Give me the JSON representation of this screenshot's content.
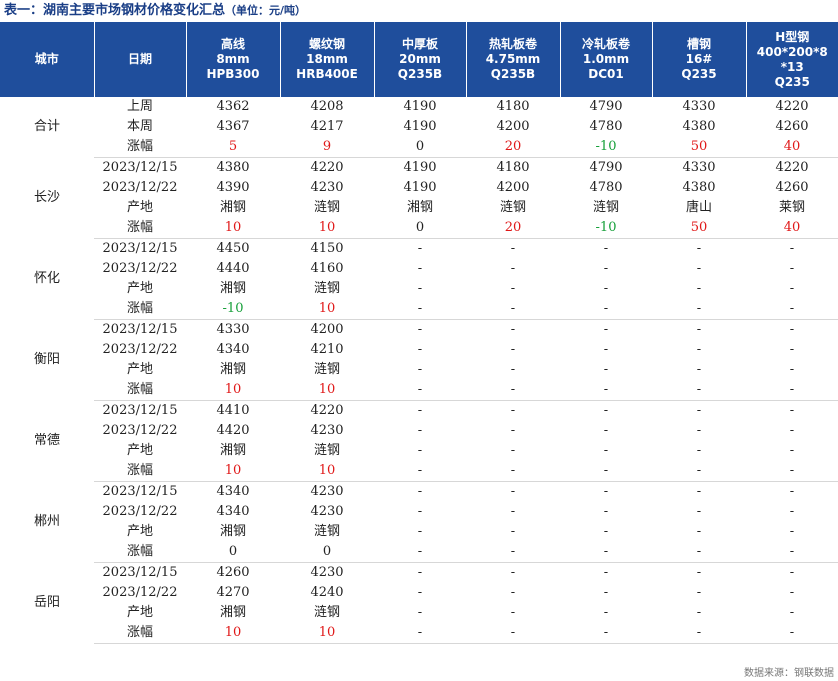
{
  "title": "表一：湖南主要市场钢材价格变化汇总",
  "unit_note": "（单位：元/吨）",
  "columns": [
    {
      "lines": [
        "城市"
      ]
    },
    {
      "lines": [
        "日期"
      ]
    },
    {
      "lines": [
        "高线",
        "8mm",
        "HPB300"
      ]
    },
    {
      "lines": [
        "螺纹钢",
        "18mm",
        "HRB400E"
      ]
    },
    {
      "lines": [
        "中厚板",
        "20mm",
        "Q235B"
      ]
    },
    {
      "lines": [
        "热轧板卷",
        "4.75mm",
        "Q235B"
      ]
    },
    {
      "lines": [
        "冷轧板卷",
        "1.0mm",
        "DC01"
      ]
    },
    {
      "lines": [
        "槽钢",
        "16#",
        "Q235"
      ]
    },
    {
      "lines": [
        "H型钢",
        "400*200*8",
        "*13",
        "Q235"
      ]
    }
  ],
  "groups": [
    {
      "city": "合计",
      "rows": [
        {
          "label": "上周",
          "cells": [
            "4362",
            "4208",
            "4190",
            "4180",
            "4790",
            "4330",
            "4220"
          ]
        },
        {
          "label": "本周",
          "cells": [
            "4367",
            "4217",
            "4190",
            "4200",
            "4780",
            "4380",
            "4260"
          ]
        },
        {
          "label": "涨幅",
          "change": true,
          "cells": [
            "5",
            "9",
            "0",
            "20",
            "-10",
            "50",
            "40"
          ]
        }
      ]
    },
    {
      "city": "长沙",
      "rows": [
        {
          "label": "2023/12/15",
          "cells": [
            "4380",
            "4220",
            "4190",
            "4180",
            "4790",
            "4330",
            "4220"
          ]
        },
        {
          "label": "2023/12/22",
          "cells": [
            "4390",
            "4230",
            "4190",
            "4200",
            "4780",
            "4380",
            "4260"
          ]
        },
        {
          "label": "产地",
          "cells": [
            "湘钢",
            "涟钢",
            "湘钢",
            "涟钢",
            "涟钢",
            "唐山",
            "莱钢"
          ]
        },
        {
          "label": "涨幅",
          "change": true,
          "cells": [
            "10",
            "10",
            "0",
            "20",
            "-10",
            "50",
            "40"
          ]
        }
      ]
    },
    {
      "city": "怀化",
      "rows": [
        {
          "label": "2023/12/15",
          "cells": [
            "4450",
            "4150",
            "-",
            "-",
            "-",
            "-",
            "-"
          ]
        },
        {
          "label": "2023/12/22",
          "cells": [
            "4440",
            "4160",
            "-",
            "-",
            "-",
            "-",
            "-"
          ]
        },
        {
          "label": "产地",
          "cells": [
            "湘钢",
            "涟钢",
            "-",
            "-",
            "-",
            "-",
            "-"
          ]
        },
        {
          "label": "涨幅",
          "change": true,
          "cells": [
            "-10",
            "10",
            "-",
            "-",
            "-",
            "-",
            "-"
          ]
        }
      ]
    },
    {
      "city": "衡阳",
      "rows": [
        {
          "label": "2023/12/15",
          "cells": [
            "4330",
            "4200",
            "-",
            "-",
            "-",
            "-",
            "-"
          ]
        },
        {
          "label": "2023/12/22",
          "cells": [
            "4340",
            "4210",
            "-",
            "-",
            "-",
            "-",
            "-"
          ]
        },
        {
          "label": "产地",
          "cells": [
            "湘钢",
            "涟钢",
            "-",
            "-",
            "-",
            "-",
            "-"
          ]
        },
        {
          "label": "涨幅",
          "change": true,
          "cells": [
            "10",
            "10",
            "-",
            "-",
            "-",
            "-",
            "-"
          ]
        }
      ]
    },
    {
      "city": "常德",
      "rows": [
        {
          "label": "2023/12/15",
          "cells": [
            "4410",
            "4220",
            "-",
            "-",
            "-",
            "-",
            "-"
          ]
        },
        {
          "label": "2023/12/22",
          "cells": [
            "4420",
            "4230",
            "-",
            "-",
            "-",
            "-",
            "-"
          ]
        },
        {
          "label": "产地",
          "cells": [
            "湘钢",
            "涟钢",
            "-",
            "-",
            "-",
            "-",
            "-"
          ]
        },
        {
          "label": "涨幅",
          "change": true,
          "cells": [
            "10",
            "10",
            "-",
            "-",
            "-",
            "-",
            "-"
          ]
        }
      ]
    },
    {
      "city": "郴州",
      "rows": [
        {
          "label": "2023/12/15",
          "cells": [
            "4340",
            "4230",
            "-",
            "-",
            "-",
            "-",
            "-"
          ]
        },
        {
          "label": "2023/12/22",
          "cells": [
            "4340",
            "4230",
            "-",
            "-",
            "-",
            "-",
            "-"
          ]
        },
        {
          "label": "产地",
          "cells": [
            "湘钢",
            "涟钢",
            "-",
            "-",
            "-",
            "-",
            "-"
          ]
        },
        {
          "label": "涨幅",
          "change": true,
          "cells": [
            "0",
            "0",
            "-",
            "-",
            "-",
            "-",
            "-"
          ]
        }
      ]
    },
    {
      "city": "岳阳",
      "rows": [
        {
          "label": "2023/12/15",
          "cells": [
            "4260",
            "4230",
            "-",
            "-",
            "-",
            "-",
            "-"
          ]
        },
        {
          "label": "2023/12/22",
          "cells": [
            "4270",
            "4240",
            "-",
            "-",
            "-",
            "-",
            "-"
          ]
        },
        {
          "label": "产地",
          "cells": [
            "湘钢",
            "涟钢",
            "-",
            "-",
            "-",
            "-",
            "-"
          ]
        },
        {
          "label": "涨幅",
          "change": true,
          "cells": [
            "10",
            "10",
            "-",
            "-",
            "-",
            "-",
            "-"
          ]
        }
      ]
    }
  ],
  "source": "数据来源：钢联数据",
  "colors": {
    "header_bg": "#1f4e9c",
    "up": "#e01818",
    "down": "#17a03a"
  }
}
